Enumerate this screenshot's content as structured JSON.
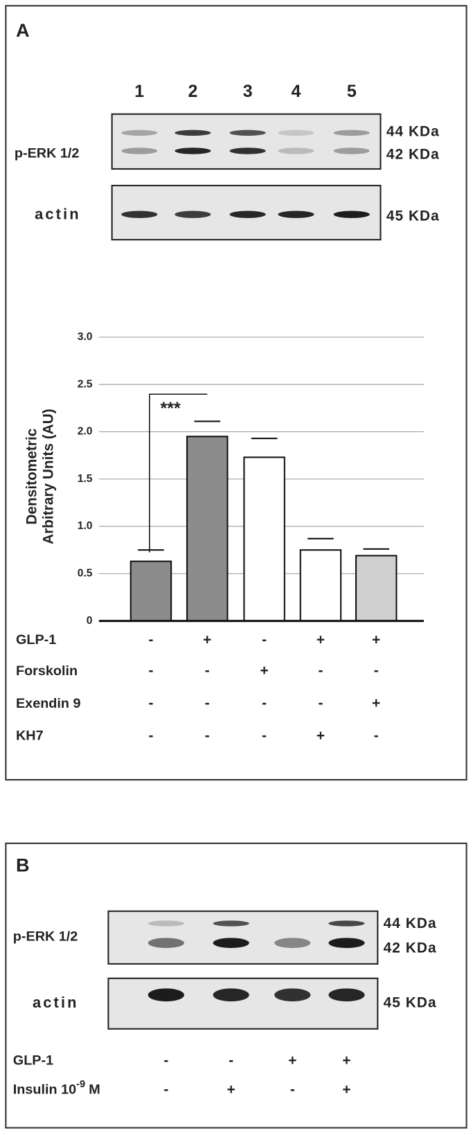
{
  "panel_a": {
    "label": "A",
    "lanes": [
      1,
      2,
      3,
      4,
      5
    ],
    "blot_perk": {
      "label": "p-ERK 1/2",
      "sizes": [
        "44 KDa",
        "42 KDa"
      ]
    },
    "blot_actin": {
      "label": "actin",
      "sizes": [
        "45 KDa"
      ]
    },
    "treatments": [
      {
        "name": "GLP-1",
        "signs": [
          "-",
          "+",
          "-",
          "+",
          "+"
        ]
      },
      {
        "name": "Forskolin",
        "signs": [
          "-",
          "-",
          "+",
          "-",
          "-"
        ]
      },
      {
        "name": "Exendin 9",
        "signs": [
          "-",
          "-",
          "-",
          "-",
          "+"
        ]
      },
      {
        "name": "KH7",
        "signs": [
          "-",
          "-",
          "-",
          "+",
          "-"
        ]
      }
    ]
  },
  "chart_data": {
    "type": "bar",
    "ylabel": [
      "Densitometric",
      "Arbitrary Units (AU)"
    ],
    "values": [
      0.63,
      1.95,
      1.73,
      0.75,
      0.69
    ],
    "errors": [
      0.12,
      0.16,
      0.2,
      0.12,
      0.07
    ],
    "colors": [
      "#8c8c8c",
      "#8c8c8c",
      "#ffffff",
      "#ffffff",
      "#d0d0d0"
    ],
    "ylim": [
      0,
      3
    ],
    "yticks": [
      0,
      0.5,
      {
        "value": 1,
        "label": "1.0"
      },
      1.5,
      {
        "value": 2,
        "label": "2.0"
      },
      2.5,
      {
        "value": 3,
        "label": "3.0"
      }
    ],
    "grid": true,
    "annotation": "***"
  },
  "panel_b": {
    "label": "B",
    "blot_perk": {
      "label": "p-ERK 1/2",
      "sizes": [
        "44 KDa",
        "42 KDa"
      ]
    },
    "blot_actin": {
      "label": "actin",
      "sizes": [
        "45 KDa"
      ]
    },
    "treatments": [
      {
        "name": "GLP-1",
        "signs": [
          "-",
          "-",
          "+",
          "+"
        ]
      },
      {
        "name": "Insulin 10",
        "sup": "-9",
        "suffix": "M",
        "signs": [
          "-",
          "+",
          "-",
          "+"
        ]
      }
    ]
  }
}
